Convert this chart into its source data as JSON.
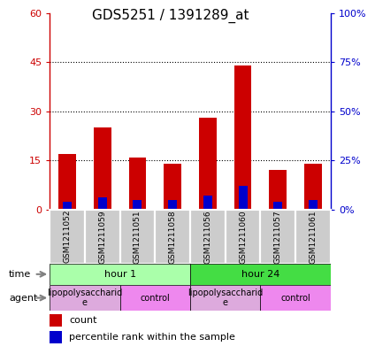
{
  "title": "GDS5251 / 1391289_at",
  "samples": [
    "GSM1211052",
    "GSM1211059",
    "GSM1211051",
    "GSM1211058",
    "GSM1211056",
    "GSM1211060",
    "GSM1211057",
    "GSM1211061"
  ],
  "count_values": [
    17,
    25,
    16,
    14,
    28,
    44,
    12,
    14
  ],
  "percentile_values": [
    4,
    6,
    5,
    5,
    7,
    12,
    4,
    5
  ],
  "ylim_left": [
    0,
    60
  ],
  "ylim_right": [
    0,
    100
  ],
  "yticks_left": [
    0,
    15,
    30,
    45,
    60
  ],
  "yticks_right": [
    0,
    25,
    50,
    75,
    100
  ],
  "bar_color": "#cc0000",
  "percentile_color": "#0000cc",
  "bar_width": 0.5,
  "percentile_bar_width": 0.25,
  "time_groups": [
    {
      "label": "hour 1",
      "span": [
        0,
        4
      ],
      "color": "#aaffaa"
    },
    {
      "label": "hour 24",
      "span": [
        4,
        8
      ],
      "color": "#44dd44"
    }
  ],
  "agent_groups": [
    {
      "label": "lipopolysaccharid\ne",
      "span": [
        0,
        2
      ],
      "color": "#ddaadd"
    },
    {
      "label": "control",
      "span": [
        2,
        4
      ],
      "color": "#ee88ee"
    },
    {
      "label": "lipopolysaccharid\ne",
      "span": [
        4,
        6
      ],
      "color": "#ddaadd"
    },
    {
      "label": "control",
      "span": [
        6,
        8
      ],
      "color": "#ee88ee"
    }
  ],
  "sample_box_color": "#cccccc",
  "sample_box_edge": "#888888",
  "left_axis_color": "#cc0000",
  "right_axis_color": "#0000cc",
  "background_color": "#ffffff",
  "dotted_line_color": "#000000",
  "title_fontsize": 11,
  "tick_fontsize": 8,
  "sample_fontsize": 6.5,
  "row_fontsize": 8,
  "legend_fontsize": 8
}
